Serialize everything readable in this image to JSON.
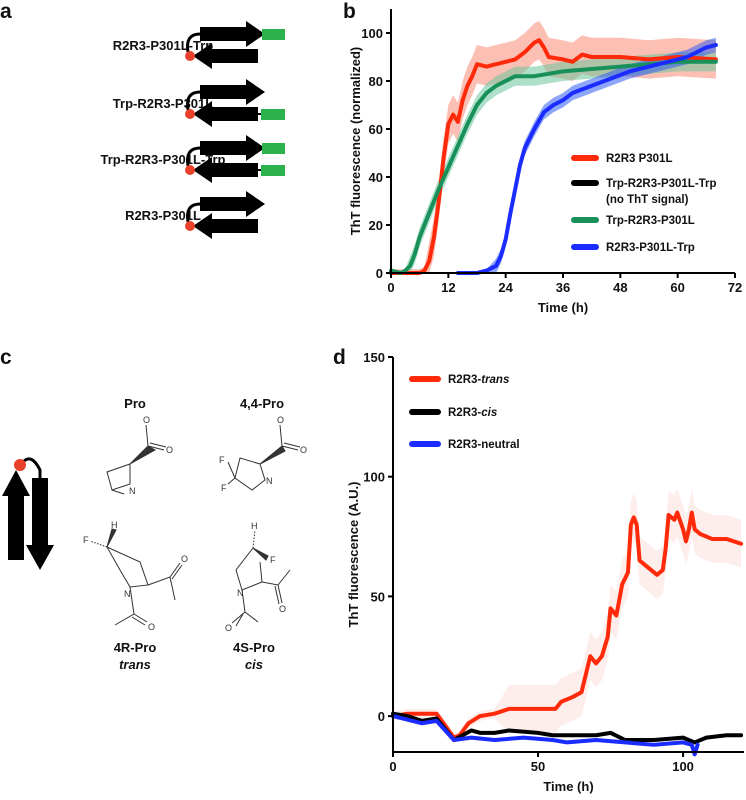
{
  "panels": {
    "a": "a",
    "b": "b",
    "c": "c",
    "d": "d"
  },
  "panel_a": {
    "constructs": [
      {
        "label": "R2R3-P301L-Trp",
        "trp_top": true,
        "trp_bottom": false
      },
      {
        "label": "Trp-R2R3-P301L",
        "trp_top": false,
        "trp_bottom": true
      },
      {
        "label": "Trp-R2R3-P301L-Trp",
        "trp_top": true,
        "trp_bottom": true
      },
      {
        "label": "R2R3-P301L",
        "trp_top": false,
        "trp_bottom": false
      }
    ],
    "colors": {
      "strand": "#000000",
      "turn": "#e8402a",
      "trp": "#2bb24c"
    }
  },
  "panel_c": {
    "molecules": [
      {
        "name": "Pro",
        "sub": ""
      },
      {
        "name": "4,4-Pro",
        "sub": ""
      },
      {
        "name": "4R-Pro",
        "sub": "trans"
      },
      {
        "name": "4S-Pro",
        "sub": "cis"
      }
    ],
    "atoms": {
      "O": "O",
      "N": "N",
      "F": "F",
      "H": "H"
    }
  },
  "chart_data": [
    {
      "id": "b",
      "type": "line",
      "xlabel": "Time (h)",
      "ylabel": "ThT fluorescence  (normalized)",
      "xlim": [
        0,
        72
      ],
      "ylim": [
        0,
        110
      ],
      "xticks": [
        0,
        12,
        24,
        36,
        48,
        60,
        72
      ],
      "yticks": [
        0,
        20,
        40,
        60,
        80,
        100
      ],
      "grid": false,
      "legend_position": "center-right",
      "series": [
        {
          "name": "R2R3 P301L",
          "color": "#ff2a0a",
          "band": 8,
          "band_color": "#f98b75",
          "points": [
            [
              0,
              0
            ],
            [
              6,
              0
            ],
            [
              7,
              1
            ],
            [
              8,
              5
            ],
            [
              9,
              15
            ],
            [
              10,
              30
            ],
            [
              11,
              48
            ],
            [
              12,
              62
            ],
            [
              13,
              66
            ],
            [
              14,
              63
            ],
            [
              15,
              72
            ],
            [
              16,
              78
            ],
            [
              17,
              82
            ],
            [
              18,
              87
            ],
            [
              20,
              86
            ],
            [
              22,
              87
            ],
            [
              24,
              88
            ],
            [
              26,
              89
            ],
            [
              28,
              92
            ],
            [
              30,
              96
            ],
            [
              31,
              97
            ],
            [
              32,
              94
            ],
            [
              33,
              90
            ],
            [
              36,
              89
            ],
            [
              38,
              88
            ],
            [
              40,
              91
            ],
            [
              42,
              90
            ],
            [
              48,
              90
            ],
            [
              54,
              89
            ],
            [
              60,
              90
            ],
            [
              68,
              89
            ]
          ]
        },
        {
          "name": "Trp-R2R3-P301L-Trp",
          "sub": "(no ThT signal)",
          "color": "#000000",
          "band": 0,
          "band_color": "#000000",
          "points": []
        },
        {
          "name": "Trp-R2R3-P301L",
          "color": "#17905a",
          "band": 4,
          "band_color": "#6cc49a",
          "points": [
            [
              0,
              1
            ],
            [
              2,
              0
            ],
            [
              3,
              1
            ],
            [
              4,
              3
            ],
            [
              5,
              8
            ],
            [
              6,
              15
            ],
            [
              8,
              25
            ],
            [
              10,
              35
            ],
            [
              12,
              44
            ],
            [
              14,
              53
            ],
            [
              16,
              62
            ],
            [
              18,
              70
            ],
            [
              20,
              75
            ],
            [
              22,
              78
            ],
            [
              24,
              80
            ],
            [
              26,
              82
            ],
            [
              30,
              82
            ],
            [
              36,
              84
            ],
            [
              42,
              85
            ],
            [
              48,
              86
            ],
            [
              54,
              87
            ],
            [
              60,
              88
            ],
            [
              68,
              88
            ]
          ]
        },
        {
          "name": "R2R3-P301L-Trp",
          "color": "#1a2cff",
          "band": 3,
          "band_color": "#2f5cf0",
          "points": [
            [
              14,
              0
            ],
            [
              18,
              0
            ],
            [
              20,
              1
            ],
            [
              22,
              3
            ],
            [
              23,
              7
            ],
            [
              24,
              14
            ],
            [
              25,
              25
            ],
            [
              26,
              35
            ],
            [
              27,
              45
            ],
            [
              28,
              52
            ],
            [
              30,
              60
            ],
            [
              32,
              67
            ],
            [
              34,
              70
            ],
            [
              36,
              72
            ],
            [
              38,
              75
            ],
            [
              42,
              78
            ],
            [
              46,
              81
            ],
            [
              50,
              84
            ],
            [
              54,
              86
            ],
            [
              58,
              88
            ],
            [
              62,
              90
            ],
            [
              66,
              94
            ],
            [
              68,
              95
            ]
          ]
        }
      ]
    },
    {
      "id": "d",
      "type": "line",
      "xlabel": "Time (h)",
      "ylabel": "ThT fluorescence  (A.U.)",
      "xlim": [
        0,
        121
      ],
      "ylim": [
        -15,
        150
      ],
      "xticks": [
        0,
        50,
        100
      ],
      "yticks": [
        0,
        50,
        100,
        150
      ],
      "grid": false,
      "legend_position": "top-left",
      "series": [
        {
          "name": "R2R3-",
          "name_italic": "trans",
          "color": "#ff2a0a",
          "band": 10,
          "band_color": "#fbe0da",
          "points": [
            [
              0,
              0
            ],
            [
              5,
              1
            ],
            [
              10,
              1
            ],
            [
              15,
              1
            ],
            [
              21,
              -9
            ],
            [
              23,
              -8
            ],
            [
              26,
              -3
            ],
            [
              30,
              0
            ],
            [
              35,
              1
            ],
            [
              40,
              3
            ],
            [
              50,
              3
            ],
            [
              56,
              3
            ],
            [
              58,
              6
            ],
            [
              62,
              8
            ],
            [
              65,
              10
            ],
            [
              67,
              20
            ],
            [
              68,
              25
            ],
            [
              70,
              22
            ],
            [
              72,
              25
            ],
            [
              74,
              33
            ],
            [
              75,
              45
            ],
            [
              77,
              42
            ],
            [
              79,
              55
            ],
            [
              81,
              60
            ],
            [
              82,
              80
            ],
            [
              83,
              83
            ],
            [
              84,
              80
            ],
            [
              85,
              65
            ],
            [
              88,
              62
            ],
            [
              91,
              59
            ],
            [
              93,
              61
            ],
            [
              94,
              70
            ],
            [
              95,
              84
            ],
            [
              97,
              82
            ],
            [
              98,
              85
            ],
            [
              100,
              78
            ],
            [
              101,
              73
            ],
            [
              102,
              78
            ],
            [
              103,
              85
            ],
            [
              104,
              78
            ],
            [
              106,
              76
            ],
            [
              110,
              74
            ],
            [
              115,
              74
            ],
            [
              120,
              72
            ]
          ]
        },
        {
          "name": "R2R3-",
          "name_italic": "cis",
          "color": "#000000",
          "band": 3,
          "band_color": "#d8d8d8",
          "points": [
            [
              0,
              1
            ],
            [
              5,
              0
            ],
            [
              10,
              -2
            ],
            [
              15,
              -1
            ],
            [
              21,
              -10
            ],
            [
              24,
              -8
            ],
            [
              27,
              -6
            ],
            [
              30,
              -7
            ],
            [
              35,
              -7
            ],
            [
              40,
              -6
            ],
            [
              50,
              -7
            ],
            [
              55,
              -8
            ],
            [
              60,
              -8
            ],
            [
              70,
              -8
            ],
            [
              75,
              -7
            ],
            [
              80,
              -10
            ],
            [
              90,
              -10
            ],
            [
              100,
              -9
            ],
            [
              104,
              -11
            ],
            [
              108,
              -9
            ],
            [
              115,
              -8
            ],
            [
              120,
              -8
            ]
          ]
        },
        {
          "name": "R2R3-neutral",
          "name_italic": "",
          "color": "#1a2cff",
          "band": 0,
          "band_color": "#1a2cff",
          "points": [
            [
              0,
              0
            ],
            [
              10,
              -3
            ],
            [
              15,
              -2
            ],
            [
              21,
              -10
            ],
            [
              27,
              -9
            ],
            [
              35,
              -10
            ],
            [
              45,
              -9
            ],
            [
              55,
              -10
            ],
            [
              60,
              -11
            ],
            [
              70,
              -10
            ],
            [
              80,
              -11
            ],
            [
              90,
              -12
            ],
            [
              100,
              -11
            ],
            [
              103,
              -12
            ],
            [
              104,
              -16
            ],
            [
              105,
              -12
            ]
          ]
        }
      ]
    }
  ]
}
